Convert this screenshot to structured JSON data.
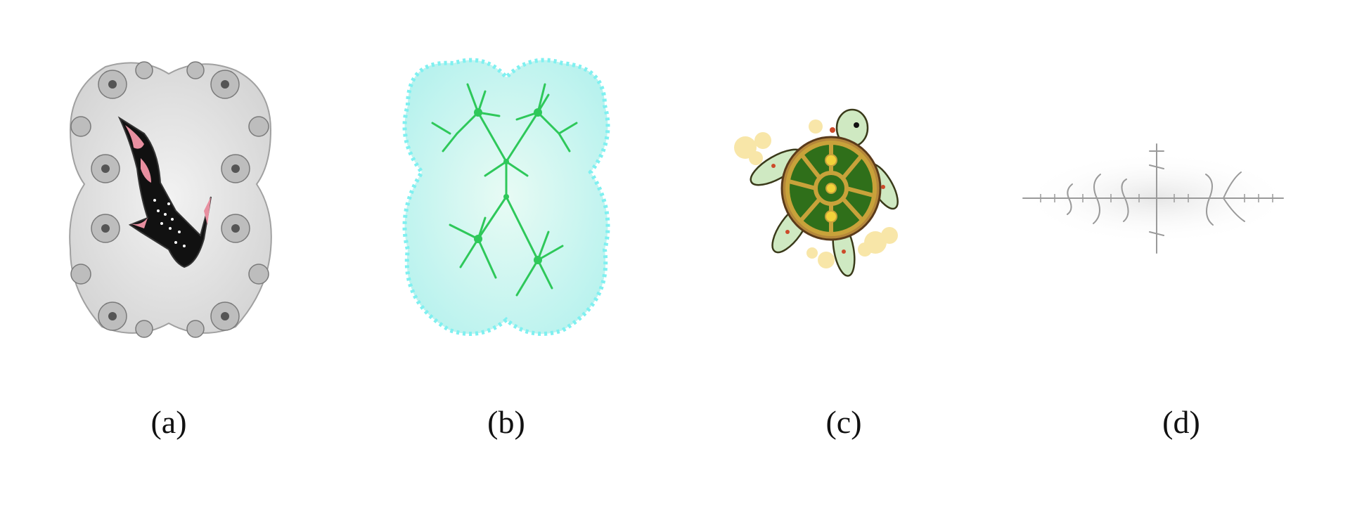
{
  "figure": {
    "panels": [
      {
        "label": "(a)",
        "subject": "shark-in-gray-fractal"
      },
      {
        "label": "(b)",
        "subject": "green-cyan-julia-fractal"
      },
      {
        "label": "(c)",
        "subject": "sea-turtle-with-yellow-fractal"
      },
      {
        "label": "(d)",
        "subject": "gray-dendrite-fractal"
      }
    ]
  },
  "colors": {
    "gray_fractal_fill": "#dcdcdc",
    "gray_fractal_edge": "#8c8c8c",
    "shark_body": "#111111",
    "shark_pink": "#e88fa0",
    "green_fractal": "#2ec85a",
    "cyan_fractal": "#7ff0f0",
    "turtle_shell": "#2f6f1a",
    "turtle_rim": "#c8a23a",
    "turtle_skin": "#cfe9c2",
    "yellow_fractal": "#f7e29a",
    "dendrite_gray": "#9a9a9a"
  }
}
